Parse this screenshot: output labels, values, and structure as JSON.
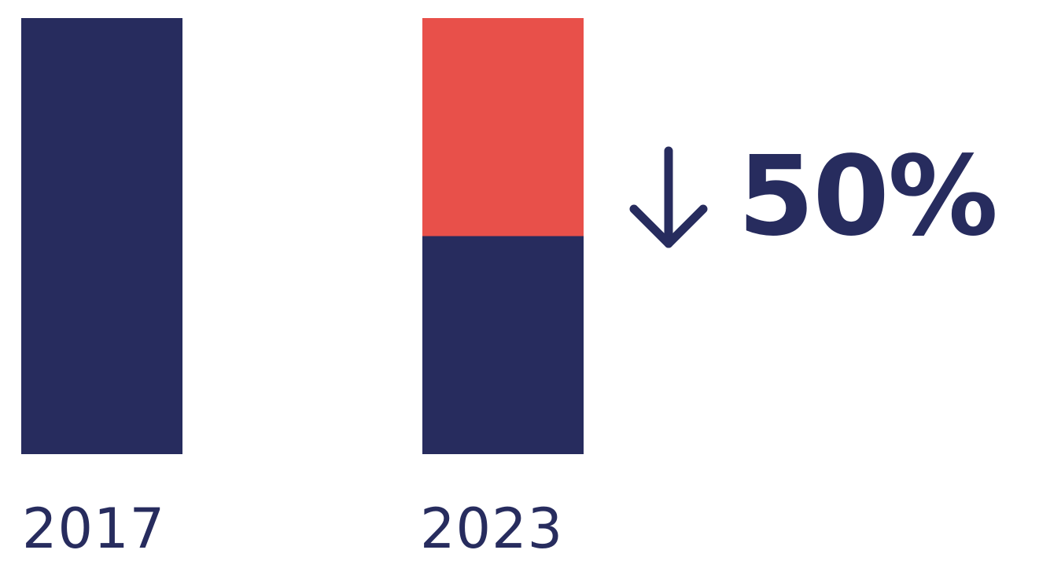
{
  "colors": {
    "navy": "#272c5e",
    "red": "#e8504a",
    "background": "#ffffff"
  },
  "chart_data": {
    "type": "bar",
    "stacked": true,
    "categories": [
      "2017",
      "2023"
    ],
    "series": [
      {
        "values": [
          100,
          50
        ],
        "color": "#272c5e"
      },
      {
        "values": [
          0,
          50
        ],
        "color": "#e8504a"
      }
    ],
    "ylim": [
      0,
      100
    ],
    "grid": false,
    "axes_visible": false,
    "annotation": {
      "direction_icon": "arrow-down-icon",
      "text": "50%"
    }
  }
}
